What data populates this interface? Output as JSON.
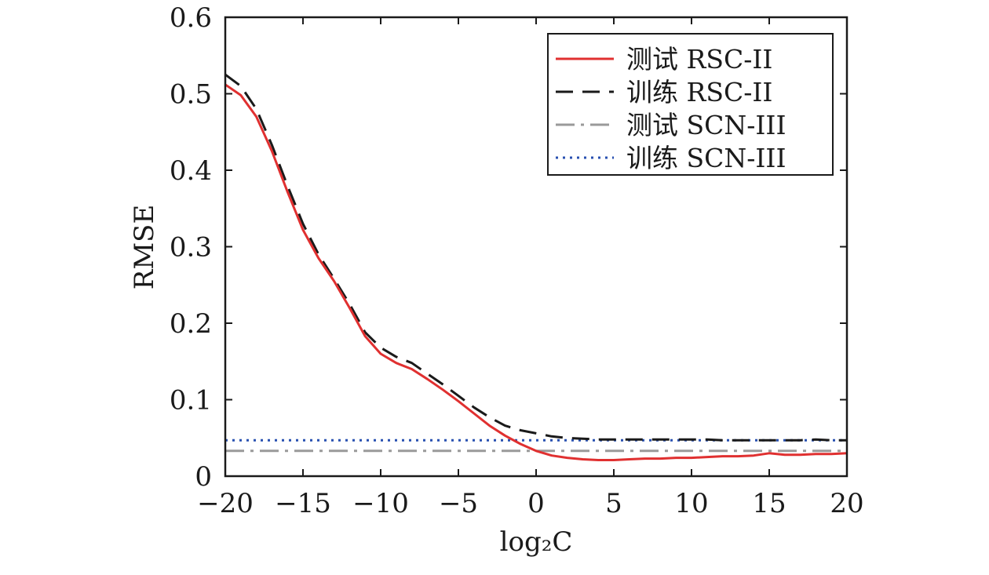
{
  "chart_data": {
    "type": "line",
    "xlabel": "log₂C",
    "ylabel": "RMSE",
    "xlim": [
      -20,
      20
    ],
    "ylim": [
      0,
      0.6
    ],
    "xticks": [
      -20,
      -15,
      -10,
      -5,
      0,
      5,
      10,
      15,
      20
    ],
    "xtick_labels": [
      "−20",
      "−15",
      "−10",
      "−5",
      "0",
      "5",
      "10",
      "15",
      "20"
    ],
    "yticks": [
      0,
      0.1,
      0.2,
      0.3,
      0.4,
      0.5,
      0.6
    ],
    "ytick_labels": [
      "0",
      "0.1",
      "0.2",
      "0.3",
      "0.4",
      "0.5",
      "0.6"
    ],
    "grid": false,
    "legend_position": "top-right",
    "series": [
      {
        "name": "测试 RSC-II",
        "color": "#e03030",
        "style": "solid",
        "x": [
          -20,
          -19,
          -18,
          -17,
          -16,
          -15,
          -14,
          -13,
          -12,
          -11,
          -10,
          -9,
          -8,
          -7,
          -6,
          -5,
          -4,
          -3,
          -2,
          -1,
          0,
          1,
          2,
          3,
          4,
          5,
          6,
          7,
          8,
          9,
          10,
          11,
          12,
          13,
          14,
          15,
          16,
          17,
          18,
          19,
          20
        ],
        "y": [
          0.512,
          0.498,
          0.47,
          0.425,
          0.372,
          0.322,
          0.285,
          0.255,
          0.22,
          0.183,
          0.16,
          0.148,
          0.14,
          0.127,
          0.113,
          0.098,
          0.082,
          0.066,
          0.053,
          0.042,
          0.033,
          0.027,
          0.024,
          0.022,
          0.021,
          0.021,
          0.022,
          0.023,
          0.023,
          0.024,
          0.024,
          0.025,
          0.026,
          0.026,
          0.027,
          0.03,
          0.028,
          0.028,
          0.029,
          0.029,
          0.03
        ]
      },
      {
        "name": "训练 RSC-II",
        "color": "#1a1a1a",
        "style": "dashed",
        "x": [
          -20,
          -19,
          -18,
          -17,
          -16,
          -15,
          -14,
          -13,
          -12,
          -11,
          -10,
          -9,
          -8,
          -7,
          -6,
          -5,
          -4,
          -3,
          -2,
          -1,
          0,
          1,
          2,
          3,
          4,
          5,
          6,
          7,
          8,
          9,
          10,
          11,
          12,
          13,
          14,
          15,
          16,
          17,
          18,
          19,
          20
        ],
        "y": [
          0.525,
          0.51,
          0.48,
          0.433,
          0.38,
          0.33,
          0.29,
          0.258,
          0.225,
          0.188,
          0.168,
          0.156,
          0.148,
          0.134,
          0.12,
          0.105,
          0.09,
          0.077,
          0.066,
          0.06,
          0.056,
          0.052,
          0.05,
          0.049,
          0.048,
          0.048,
          0.048,
          0.048,
          0.048,
          0.048,
          0.048,
          0.048,
          0.047,
          0.047,
          0.047,
          0.047,
          0.047,
          0.047,
          0.048,
          0.047,
          0.047
        ]
      },
      {
        "name": "测试 SCN-III",
        "color": "#9a9a9a",
        "style": "dashdot",
        "x": [
          -20,
          20
        ],
        "y": [
          0.033,
          0.033
        ]
      },
      {
        "name": "训练 SCN-III",
        "color": "#2850b0",
        "style": "dotted",
        "x": [
          -20,
          20
        ],
        "y": [
          0.047,
          0.047
        ]
      }
    ]
  }
}
